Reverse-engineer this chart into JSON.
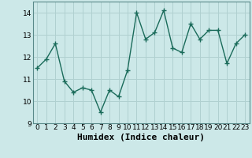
{
  "x": [
    0,
    1,
    2,
    3,
    4,
    5,
    6,
    7,
    8,
    9,
    10,
    11,
    12,
    13,
    14,
    15,
    16,
    17,
    18,
    19,
    20,
    21,
    22,
    23
  ],
  "y": [
    11.5,
    11.9,
    12.6,
    10.9,
    10.4,
    10.6,
    10.5,
    9.5,
    10.5,
    10.2,
    11.4,
    14.0,
    12.8,
    13.1,
    14.1,
    12.4,
    12.2,
    13.5,
    12.8,
    13.2,
    13.2,
    11.7,
    12.6,
    13.0
  ],
  "line_color": "#1a6b5a",
  "marker": "+",
  "marker_size": 4,
  "bg_color": "#cce8e8",
  "grid_color": "#b0d0d0",
  "xlabel": "Humidex (Indice chaleur)",
  "xlim": [
    -0.5,
    23.5
  ],
  "ylim": [
    9,
    14.5
  ],
  "yticks": [
    9,
    10,
    11,
    12,
    13,
    14
  ],
  "xticks": [
    0,
    1,
    2,
    3,
    4,
    5,
    6,
    7,
    8,
    9,
    10,
    11,
    12,
    13,
    14,
    15,
    16,
    17,
    18,
    19,
    20,
    21,
    22,
    23
  ],
  "tick_fontsize": 6.5,
  "label_fontsize": 8,
  "line_width": 1.0
}
